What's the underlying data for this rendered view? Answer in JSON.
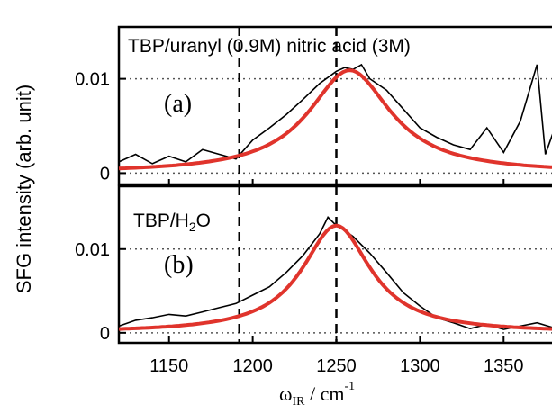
{
  "chart_data": {
    "type": "line",
    "xlabel": "ω",
    "xlabel_sub": "IR",
    "xlabel_unit": " / cm",
    "xlabel_sup": "-1",
    "ylabel": "SFG intensity (arb. unit)",
    "xlim": [
      1120,
      1380
    ],
    "x_ticks": [
      1150,
      1200,
      1250,
      1300,
      1350
    ],
    "vlines": [
      1192,
      1250
    ],
    "grid": "horizontal dotted at y ticks",
    "colors": {
      "data": "#000000",
      "fit": "#e0342c",
      "frame": "#000000"
    },
    "panels": [
      {
        "id": "a",
        "tag": "(a)",
        "label": "TBP/uranyl (0.9M) nitric acid (3M)",
        "ylim": [
          -0.0012,
          0.0155
        ],
        "y_ticks": [
          0,
          0.01
        ],
        "y_tick_labels": [
          "0",
          "0.01"
        ],
        "fit": {
          "center": 1258,
          "hwhm": 30,
          "amplitude": 0.0109
        },
        "series": [
          {
            "role": "data",
            "x": [
              1120,
              1130,
              1140,
              1150,
              1160,
              1170,
              1180,
              1190,
              1200,
              1210,
              1220,
              1230,
              1240,
              1250,
              1255,
              1260,
              1265,
              1270,
              1280,
              1290,
              1300,
              1310,
              1320,
              1330,
              1340,
              1350,
              1360,
              1370,
              1375,
              1380
            ],
            "y": [
              0.0012,
              0.002,
              0.001,
              0.0018,
              0.0012,
              0.0025,
              0.002,
              0.0015,
              0.0035,
              0.0048,
              0.0062,
              0.0078,
              0.0095,
              0.0108,
              0.0112,
              0.011,
              0.0115,
              0.01,
              0.0088,
              0.0068,
              0.0048,
              0.0038,
              0.003,
              0.0025,
              0.0048,
              0.0022,
              0.0055,
              0.0115,
              0.002,
              0.0045
            ]
          }
        ]
      },
      {
        "id": "b",
        "tag": "(b)",
        "label": "TBP/H",
        "label_sub": "2",
        "label_tail": "O",
        "ylim": [
          -0.0012,
          0.0175
        ],
        "y_ticks": [
          0,
          0.01
        ],
        "y_tick_labels": [
          "0",
          "0.01"
        ],
        "fit": {
          "center": 1250,
          "hwhm": 25,
          "amplitude": 0.0128
        },
        "series": [
          {
            "role": "data",
            "x": [
              1120,
              1130,
              1140,
              1150,
              1160,
              1170,
              1180,
              1190,
              1200,
              1210,
              1220,
              1230,
              1240,
              1245,
              1250,
              1255,
              1260,
              1270,
              1280,
              1290,
              1300,
              1310,
              1320,
              1330,
              1340,
              1350,
              1360,
              1370,
              1380
            ],
            "y": [
              0.0008,
              0.0015,
              0.0018,
              0.0022,
              0.002,
              0.0025,
              0.003,
              0.0035,
              0.0045,
              0.0055,
              0.0072,
              0.0092,
              0.0118,
              0.0138,
              0.0128,
              0.0122,
              0.0115,
              0.0095,
              0.0072,
              0.0048,
              0.0032,
              0.0018,
              0.0012,
              0.0005,
              0.001,
              0.0004,
              0.0008,
              0.0012,
              0.0006
            ]
          }
        ]
      }
    ]
  }
}
